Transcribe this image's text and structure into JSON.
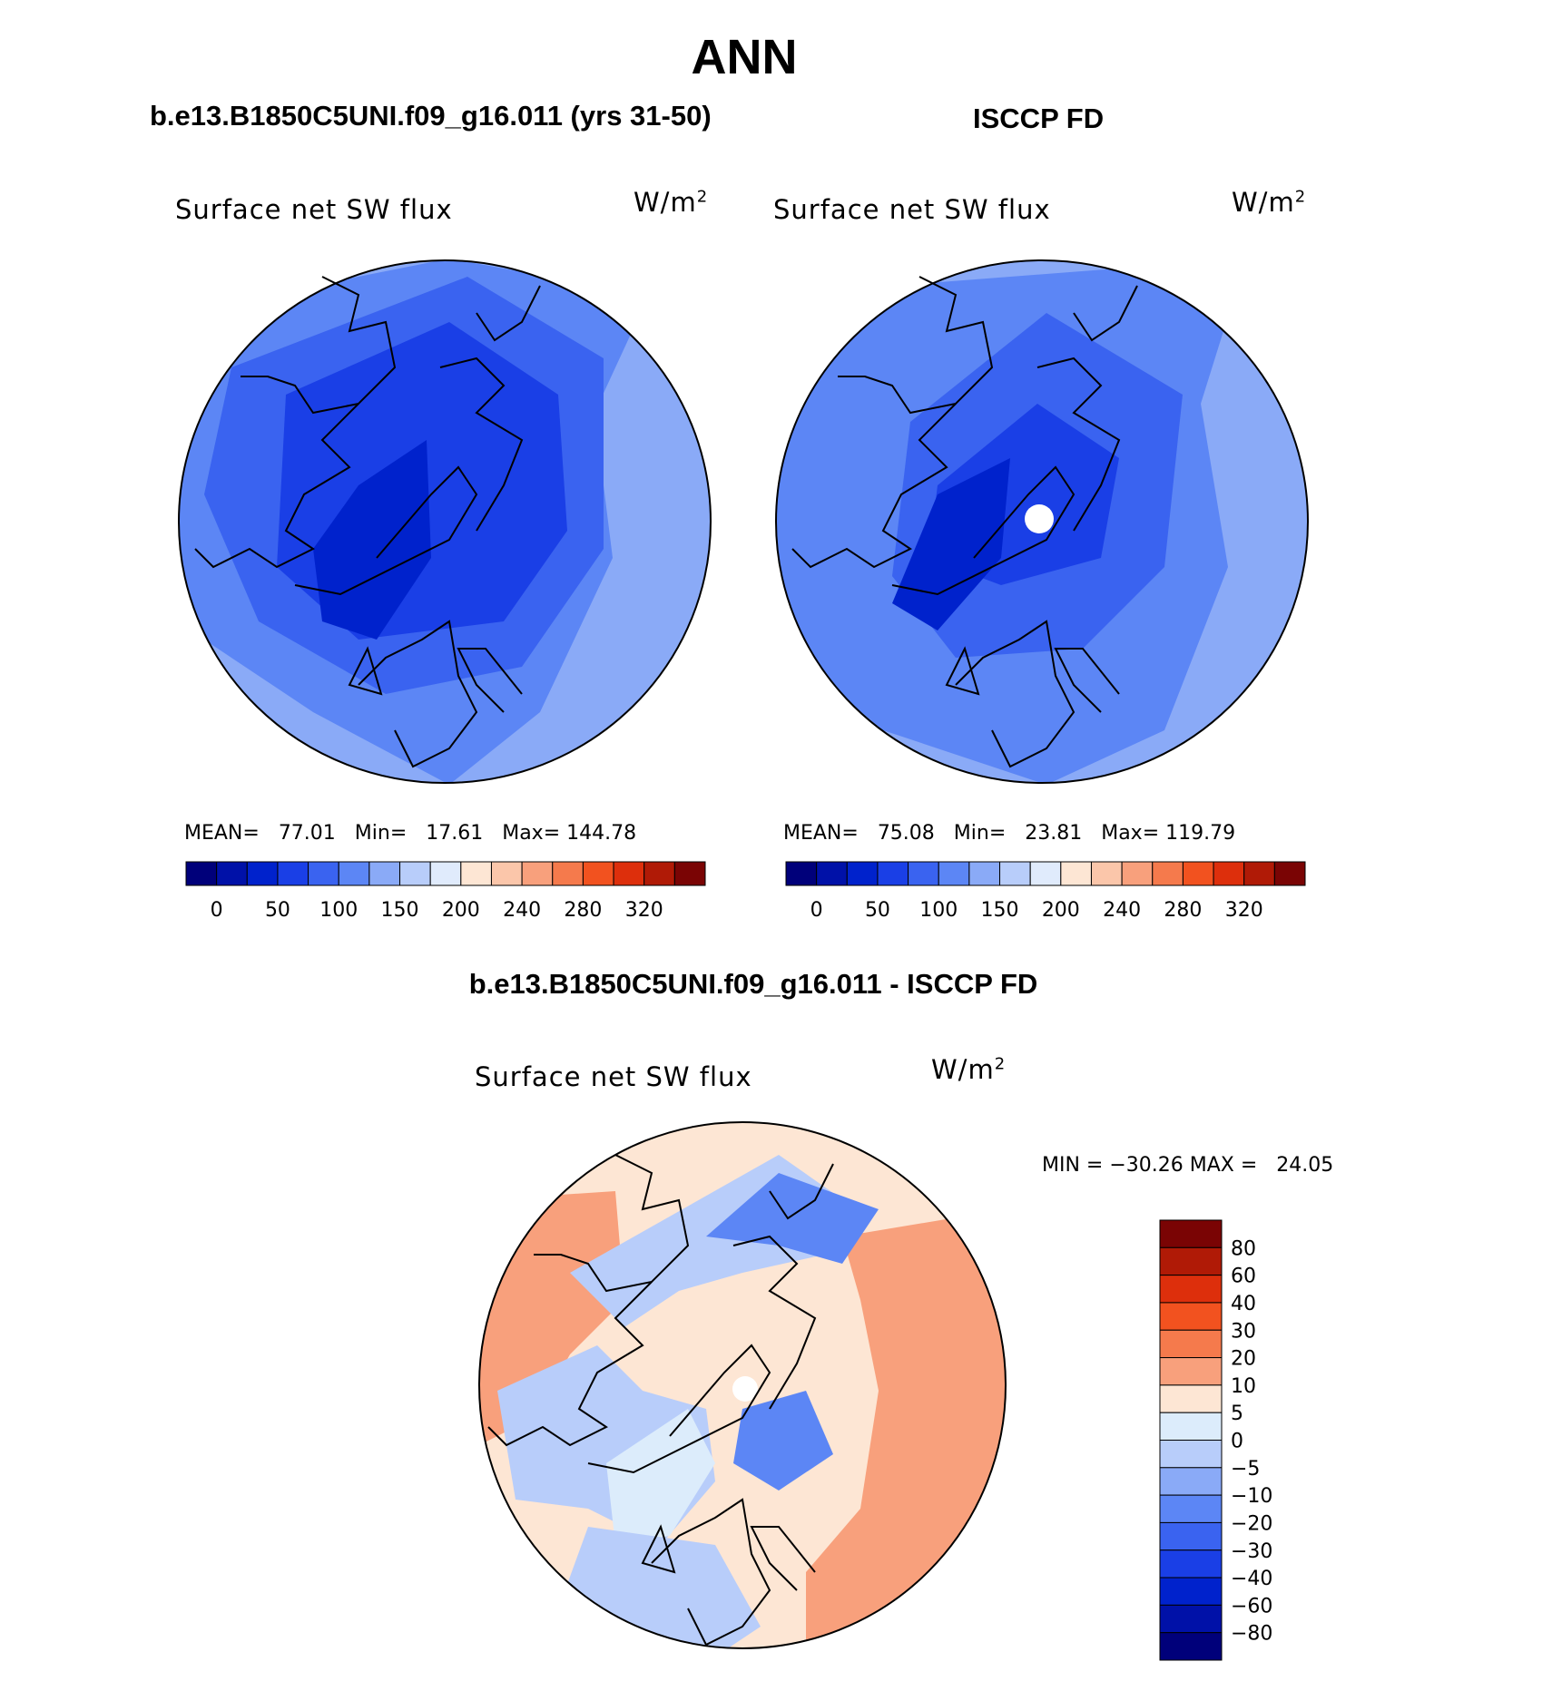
{
  "main_title": "ANN",
  "left_title": "b.e13.B1850C5UNI.f09_g16.011 (yrs 31-50)",
  "right_title": "ISCCP FD",
  "diff_title": "b.e13.B1850C5UNI.f09_g16.011 - ISCCP FD",
  "variable_label": "Surface net SW flux",
  "units_base": "W/m",
  "units_exp": "2",
  "left_stats": {
    "mean_label": "MEAN=",
    "mean": "77.01",
    "min_label": "Min=",
    "min": "17.61",
    "max_label": "Max=",
    "max": "144.78"
  },
  "right_stats": {
    "mean_label": "MEAN=",
    "mean": "75.08",
    "min_label": "Min=",
    "min": "23.81",
    "max_label": "Max=",
    "max": "119.79"
  },
  "diff_stats": {
    "text": "MIN = −30.26 MAX =   24.05"
  },
  "abs_colorbar": {
    "colors": [
      "#00007a",
      "#0011a8",
      "#0022cc",
      "#1a3fe6",
      "#3a63f0",
      "#5c86f5",
      "#8aaaf7",
      "#b8cdfa",
      "#e0ebfc",
      "#fde6d4",
      "#fbc6aa",
      "#f8a07c",
      "#f57a4c",
      "#f2521f",
      "#dd2f0c",
      "#b01a06",
      "#7a0404"
    ],
    "ticks": [
      "0",
      "50",
      "100",
      "150",
      "200",
      "240",
      "280",
      "320"
    ]
  },
  "diff_colorbar": {
    "colors": [
      "#7a0404",
      "#b01a06",
      "#dd2f0c",
      "#f2521f",
      "#f57a4c",
      "#f8a07c",
      "#fde6d4",
      "#dcecfb",
      "#b8cdfa",
      "#8aaaf7",
      "#5c86f5",
      "#3a63f0",
      "#1a3fe6",
      "#0022cc",
      "#0011a8",
      "#00007a"
    ],
    "ticks": [
      "80",
      "60",
      "40",
      "30",
      "20",
      "10",
      "5",
      "0",
      "−5",
      "−10",
      "−20",
      "−30",
      "−40",
      "−60",
      "−80"
    ]
  },
  "map_colors": {
    "abs_ocean": "#3a63f0",
    "abs_outer": "#8aaaf7",
    "abs_mid": "#5c86f5",
    "abs_inner": "#1a3fe6",
    "abs_core": "#0022cc",
    "diff_base": "#fde6d4",
    "diff_warm": "#f8a07c",
    "diff_cool": "#b8cdfa",
    "diff_blue": "#5c86f5",
    "diff_light": "#dcecfb"
  }
}
